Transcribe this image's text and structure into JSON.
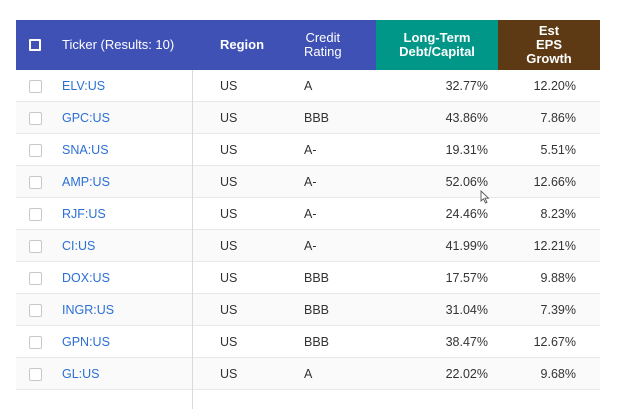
{
  "header": {
    "ticker": "Ticker (Results: 10)",
    "region": "Region",
    "credit_line1": "Credit",
    "credit_line2": "Rating",
    "debt_line1": "Long-Term",
    "debt_line2": "Debt/Capital",
    "eps_line1": "Est",
    "eps_line2": "EPS",
    "eps_line3": "Growth"
  },
  "colors": {
    "header_bg": "#3f51b5",
    "debt_header_bg": "#009688",
    "eps_header_bg": "#5d3a14",
    "ticker_link": "#2a6fd6"
  },
  "rows": [
    {
      "ticker": "ELV:US",
      "region": "US",
      "credit": "A",
      "debt": "32.77%",
      "eps": "12.20%"
    },
    {
      "ticker": "GPC:US",
      "region": "US",
      "credit": "BBB",
      "debt": "43.86%",
      "eps": "7.86%"
    },
    {
      "ticker": "SNA:US",
      "region": "US",
      "credit": "A-",
      "debt": "19.31%",
      "eps": "5.51%"
    },
    {
      "ticker": "AMP:US",
      "region": "US",
      "credit": "A-",
      "debt": "52.06%",
      "eps": "12.66%"
    },
    {
      "ticker": "RJF:US",
      "region": "US",
      "credit": "A-",
      "debt": "24.46%",
      "eps": "8.23%"
    },
    {
      "ticker": "CI:US",
      "region": "US",
      "credit": "A-",
      "debt": "41.99%",
      "eps": "12.21%"
    },
    {
      "ticker": "DOX:US",
      "region": "US",
      "credit": "BBB",
      "debt": "17.57%",
      "eps": "9.88%"
    },
    {
      "ticker": "INGR:US",
      "region": "US",
      "credit": "BBB",
      "debt": "31.04%",
      "eps": "7.39%"
    },
    {
      "ticker": "GPN:US",
      "region": "US",
      "credit": "BBB",
      "debt": "38.47%",
      "eps": "12.67%"
    },
    {
      "ticker": "GL:US",
      "region": "US",
      "credit": "A",
      "debt": "22.02%",
      "eps": "9.68%"
    }
  ]
}
